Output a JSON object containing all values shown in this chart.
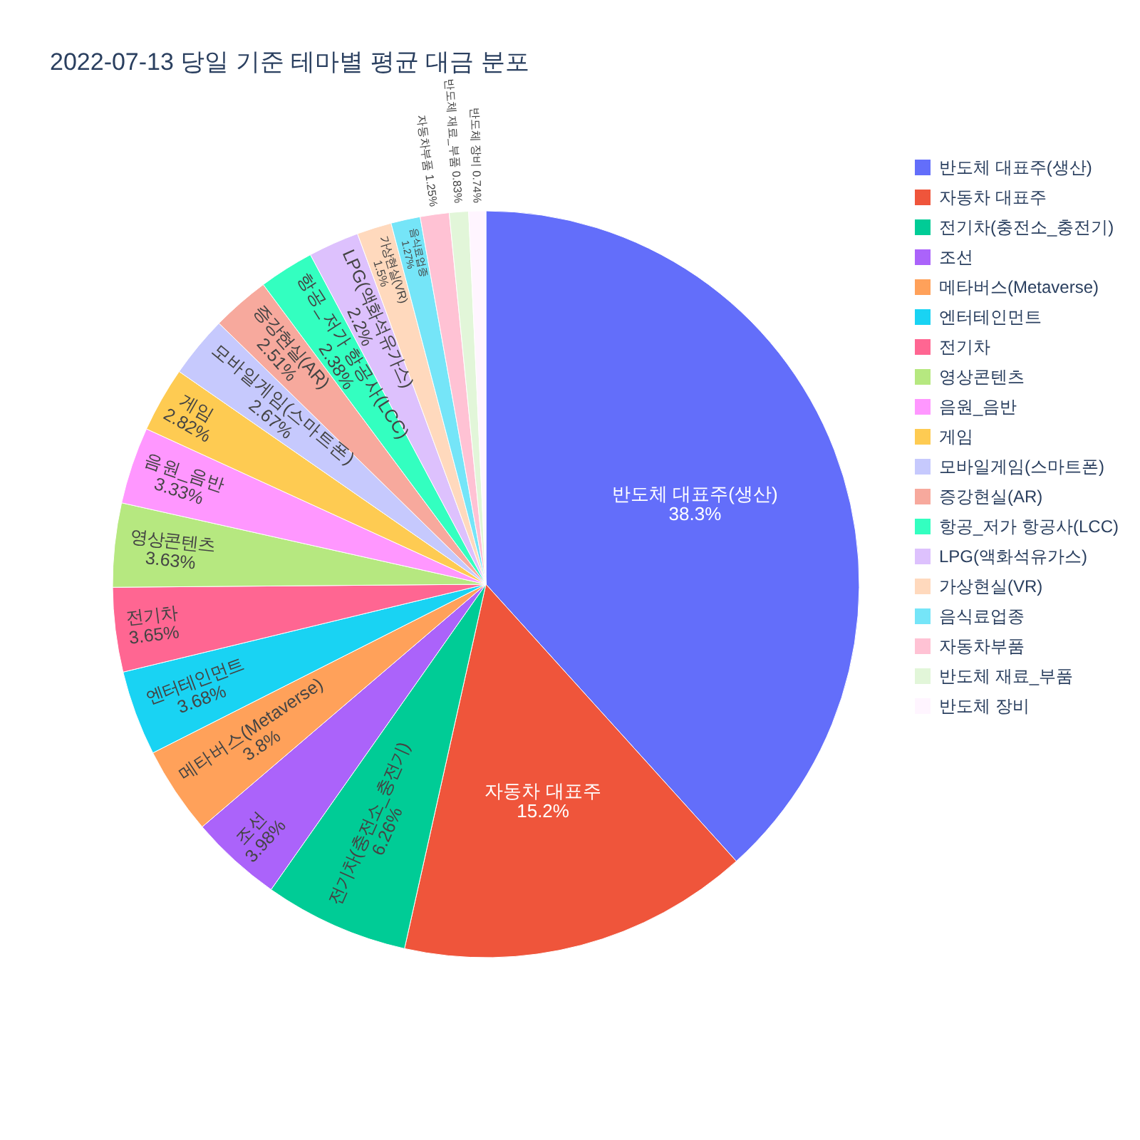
{
  "chart_data": {
    "type": "pie",
    "title": "2022-07-13 당일 기준 테마별 평균 대금 분포",
    "categories": [
      "반도체 대표주(생산)",
      "자동차 대표주",
      "전기차(충전소_충전기)",
      "조선",
      "메타버스(Metaverse)",
      "엔터테인먼트",
      "전기차",
      "영상콘텐츠",
      "음원_음반",
      "게임",
      "모바일게임(스마트폰)",
      "증강현실(AR)",
      "항공_저가 항공사(LCC)",
      "LPG(액화석유가스)",
      "가상현실(VR)",
      "음식료업종",
      "자동차부품",
      "반도체 재료_부품",
      "반도체 장비"
    ],
    "values": [
      38.3,
      15.2,
      6.26,
      3.98,
      3.8,
      3.68,
      3.65,
      3.63,
      3.33,
      2.82,
      2.67,
      2.51,
      2.38,
      2.2,
      1.5,
      1.27,
      1.25,
      0.83,
      0.74
    ],
    "colors": [
      "#636efa",
      "#ef553b",
      "#00cc96",
      "#ab63fa",
      "#ffa15a",
      "#19d3f3",
      "#ff6692",
      "#b6e880",
      "#ff97ff",
      "#fecb52",
      "#c6c9fd",
      "#f7a99d",
      "#33ffc0",
      "#ddc1fd",
      "#ffd9bd",
      "#75e5f8",
      "#ffc2d4",
      "#e2f6d9",
      "#fff5ff"
    ],
    "value_labels": [
      "38.3%",
      "15.2%",
      "6.26%",
      "3.98%",
      "3.8%",
      "3.68%",
      "3.65%",
      "3.63%",
      "3.33%",
      "2.82%",
      "2.67%",
      "2.51%",
      "2.38%",
      "2.2%",
      "1.5%",
      "1.27%",
      "1.25%",
      "0.83%",
      "0.74%"
    ],
    "legend": "right"
  }
}
